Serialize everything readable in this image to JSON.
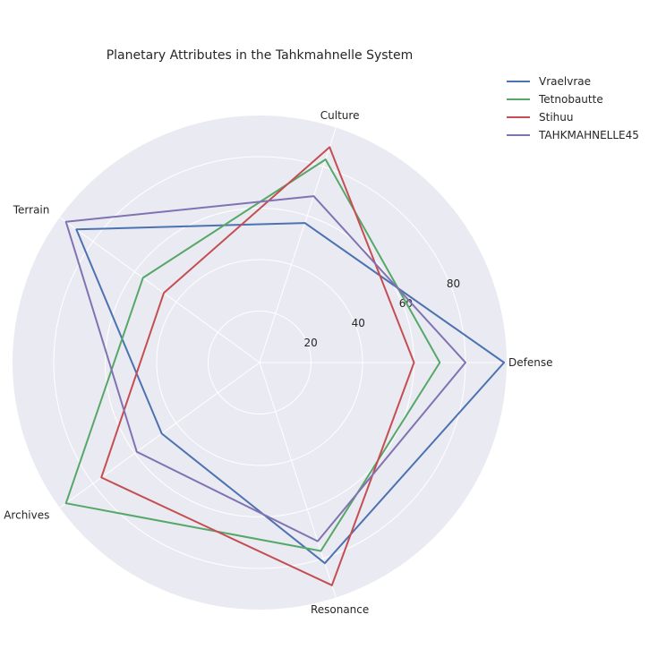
{
  "chart_data": {
    "type": "radar",
    "title": "Planetary Attributes in the Tahkmahnelle System",
    "axes": [
      "Defense",
      "Culture",
      "Terrain",
      "Archives",
      "Resonance"
    ],
    "rlim": [
      0,
      96
    ],
    "rticks": [
      20,
      40,
      60,
      80
    ],
    "grid": true,
    "legend_position": "top-right",
    "series": [
      {
        "name": "Vraelvrae",
        "color": "#4c72b0",
        "values": [
          95,
          57,
          88,
          47,
          82
        ]
      },
      {
        "name": "Tetnobautte",
        "color": "#55a868",
        "values": [
          70,
          83,
          56,
          93,
          77
        ]
      },
      {
        "name": "Stihuu",
        "color": "#c44e52",
        "values": [
          60,
          88,
          46,
          76,
          91
        ]
      },
      {
        "name": "TAHKMAHNELLE45",
        "color": "#8172b2",
        "values": [
          80,
          68,
          93,
          59,
          73
        ]
      }
    ]
  }
}
